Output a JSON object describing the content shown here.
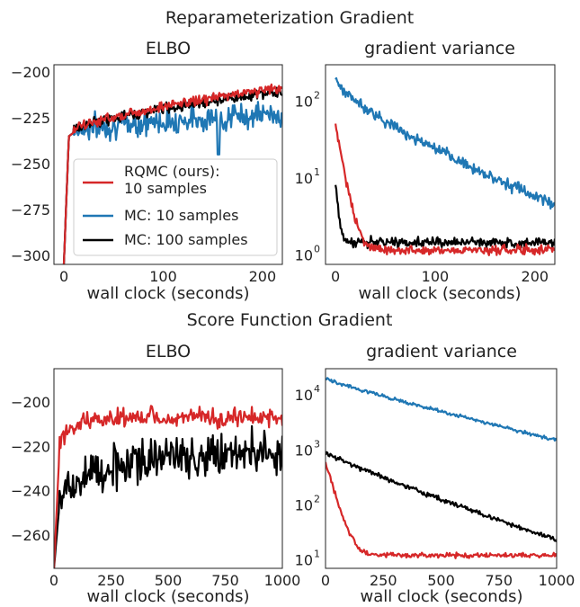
{
  "colors": {
    "rqmc": "#d62728",
    "mc10": "#1f77b4",
    "mc100": "#000000"
  },
  "sections": [
    {
      "title": "Reparameterization Gradient"
    },
    {
      "title": "Score Function Gradient"
    }
  ],
  "chart_data": [
    {
      "type": "line",
      "title": "ELBO",
      "xlabel": "wall clock (seconds)",
      "ylabel": "",
      "xlim": [
        -10,
        220
      ],
      "ylim": [
        -305,
        -196
      ],
      "yscale": "linear",
      "xticks": [
        0,
        100,
        200
      ],
      "xtick_labels": [
        "0",
        "100",
        "200"
      ],
      "yticks": [
        -200,
        -225,
        -250,
        -275,
        -300
      ],
      "ytick_labels": [
        "−200",
        "−225",
        "−250",
        "−275",
        "−300"
      ],
      "legend": {
        "placement": "lower-right",
        "entries": [
          "RQMC (ours):\n10 samples",
          "MC: 10 samples",
          "MC: 100 samples"
        ]
      },
      "series": [
        {
          "name": "MC: 10 samples",
          "color": "#1f77b4",
          "kind": "elbo_mc10",
          "x_end": 220,
          "tail": -223,
          "noise": 5
        },
        {
          "name": "MC: 100 samples",
          "color": "#000000",
          "kind": "elbo_mc100",
          "x_end": 220,
          "tail": -211,
          "noise": 2
        },
        {
          "name": "RQMC (ours): 10 samples",
          "color": "#d62728",
          "kind": "elbo_rqmc",
          "x_end": 220,
          "tail": -209,
          "noise": 2
        }
      ]
    },
    {
      "type": "line",
      "title": "gradient variance",
      "xlabel": "wall clock (seconds)",
      "ylabel": "",
      "xlim": [
        -10,
        220
      ],
      "ylim": [
        0.75,
        300
      ],
      "yscale": "log",
      "xticks": [
        0,
        100,
        200
      ],
      "xtick_labels": [
        "0",
        "100",
        "200"
      ],
      "yticks": [
        1,
        10,
        100
      ],
      "ytick_labels": [
        "10^0",
        "10^1",
        "10^2"
      ],
      "series": [
        {
          "name": "MC: 10 samples",
          "color": "#1f77b4",
          "kind": "var_mc10",
          "start": 190,
          "end": 4.5,
          "noise": 0.12
        },
        {
          "name": "MC: 100 samples",
          "color": "#000000",
          "kind": "var_mc100",
          "start": 9,
          "floor": 1.45,
          "noise": 0.1
        },
        {
          "name": "RQMC (ours): 10 samples",
          "color": "#d62728",
          "kind": "var_rqmc",
          "start": 50,
          "floor": 1.15,
          "noise": 0.1
        }
      ]
    },
    {
      "type": "line",
      "title": "ELBO",
      "xlabel": "wall clock (seconds)",
      "ylabel": "",
      "xlim": [
        0,
        1000
      ],
      "ylim": [
        -275,
        -185
      ],
      "yscale": "linear",
      "xticks": [
        0,
        250,
        500,
        750,
        1000
      ],
      "xtick_labels": [
        "0",
        "250",
        "500",
        "750",
        "1000"
      ],
      "yticks": [
        -200,
        -220,
        -240,
        -260
      ],
      "ytick_labels": [
        "−200",
        "−220",
        "−240",
        "−260"
      ],
      "series": [
        {
          "name": "MC: 100 samples",
          "color": "#000000",
          "kind": "sf_elbo_mc100",
          "tail": -222,
          "noise": 7
        },
        {
          "name": "RQMC (ours): 10 samples",
          "color": "#d62728",
          "kind": "sf_elbo_rqmc",
          "tail": -207,
          "noise": 3
        }
      ]
    },
    {
      "type": "line",
      "title": "gradient variance",
      "xlabel": "wall clock (seconds)",
      "ylabel": "",
      "xlim": [
        0,
        1000
      ],
      "ylim": [
        7,
        30000
      ],
      "yscale": "log",
      "xticks": [
        0,
        250,
        500,
        750,
        1000
      ],
      "xtick_labels": [
        "0",
        "250",
        "500",
        "750",
        "1000"
      ],
      "yticks": [
        10,
        100,
        1000,
        10000
      ],
      "ytick_labels": [
        "10^1",
        "10^2",
        "10^3",
        "10^4"
      ],
      "series": [
        {
          "name": "MC: 10 samples",
          "color": "#1f77b4",
          "kind": "sf_var_mc10",
          "start": 20000,
          "end": 1500,
          "noise": 0.05
        },
        {
          "name": "MC: 100 samples",
          "color": "#000000",
          "kind": "sf_var_mc100",
          "start": 900,
          "end": 23,
          "noise": 0.07
        },
        {
          "name": "RQMC (ours): 10 samples",
          "color": "#d62728",
          "kind": "sf_var_rqmc",
          "start": 600,
          "floor": 12,
          "noise": 0.08
        }
      ]
    }
  ]
}
